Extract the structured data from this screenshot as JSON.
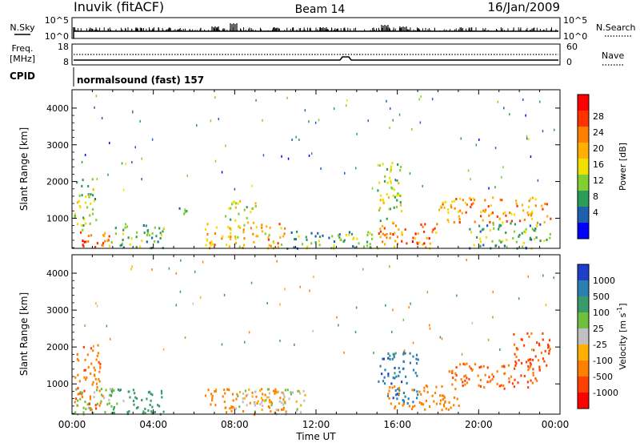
{
  "header": {
    "station": "Inuvik (fitACF)",
    "beam": "Beam 14",
    "date": "16/Jan/2009"
  },
  "top_panel": {
    "left_label": "N.Sky",
    "left_ticks": [
      "10^5",
      "10^0"
    ],
    "right_ticks": [
      "10^5",
      "10^0"
    ],
    "right_label": "N.Search"
  },
  "freq_panel": {
    "left_label_1": "Freq.",
    "left_label_2": "[MHz]",
    "left_ticks": [
      "18",
      "8"
    ],
    "right_ticks": [
      "60",
      "0"
    ],
    "right_label": "Nave",
    "cpid_label": "CPID",
    "cpid_text": "normalsound (fast) 157"
  },
  "axes": {
    "ylabel": "Slant Range [km]",
    "xlabel": "Time UT",
    "x_ticks": [
      "00:00",
      "04:00",
      "08:00",
      "12:00",
      "16:00",
      "20:00",
      "00:00"
    ],
    "y_ticks": [
      "1000",
      "2000",
      "3000",
      "4000"
    ]
  },
  "power_colorbar": {
    "label": "Power [dB]",
    "ticks": [
      "28",
      "24",
      "20",
      "16",
      "12",
      "8",
      "4"
    ],
    "colors": [
      "#ff0000",
      "#ff3300",
      "#ff8000",
      "#ffb000",
      "#f0e000",
      "#7fd030",
      "#2a9d5a",
      "#1e60b0",
      "#0000ff"
    ]
  },
  "velocity_colorbar": {
    "label_main": "Velocity  [m s",
    "label_sup": "-1",
    "label_end": "]",
    "ticks": [
      "1000",
      "500",
      "100",
      "25",
      "-25",
      "-100",
      "-500",
      "-1000"
    ],
    "colors": [
      "#1e40c8",
      "#2a80b0",
      "#3a9a6a",
      "#70c040",
      "#c0c0c0",
      "#ffb000",
      "#ff8000",
      "#ff4000",
      "#ff0000"
    ]
  },
  "chart_data": {
    "type": "heatmap",
    "x_range_hours": [
      0,
      24
    ],
    "y_range_km": [
      180,
      4500
    ],
    "power_blobs": [
      {
        "t0": 0.1,
        "t1": 1.8,
        "r0": 200,
        "r1": 700,
        "level": 26
      },
      {
        "t0": 0.1,
        "t1": 1.2,
        "r0": 700,
        "r1": 2100,
        "level": 12
      },
      {
        "t0": 1.8,
        "t1": 4.5,
        "r0": 200,
        "r1": 900,
        "level": 10
      },
      {
        "t0": 5.2,
        "t1": 5.6,
        "r0": 900,
        "r1": 1400,
        "level": 6
      },
      {
        "t0": 6.5,
        "t1": 10.5,
        "r0": 200,
        "r1": 900,
        "level": 20
      },
      {
        "t0": 7.5,
        "t1": 9.0,
        "r0": 900,
        "r1": 1500,
        "level": 14
      },
      {
        "t0": 10.5,
        "t1": 15.0,
        "r0": 200,
        "r1": 700,
        "level": 10
      },
      {
        "t0": 15.0,
        "t1": 18.0,
        "r0": 200,
        "r1": 900,
        "level": 24
      },
      {
        "t0": 15.0,
        "t1": 16.2,
        "r0": 900,
        "r1": 2600,
        "level": 14
      },
      {
        "t0": 18.0,
        "t1": 23.5,
        "r0": 900,
        "r1": 1600,
        "level": 22
      },
      {
        "t0": 19.5,
        "t1": 23.5,
        "r0": 200,
        "r1": 900,
        "level": 10
      }
    ],
    "velocity_blobs": [
      {
        "t0": 0.1,
        "t1": 1.5,
        "r0": 300,
        "r1": 2100,
        "level": -400
      },
      {
        "t0": 0.1,
        "t1": 2.5,
        "r0": 200,
        "r1": 900,
        "level": 50
      },
      {
        "t0": 1.8,
        "t1": 4.5,
        "r0": 200,
        "r1": 900,
        "level": 200
      },
      {
        "t0": 6.5,
        "t1": 10.5,
        "r0": 200,
        "r1": 900,
        "level": -150
      },
      {
        "t0": 8.0,
        "t1": 11.5,
        "r0": 200,
        "r1": 900,
        "level": 0
      },
      {
        "t0": 15.0,
        "t1": 17.0,
        "r0": 500,
        "r1": 1900,
        "level": 800
      },
      {
        "t0": 15.5,
        "t1": 19.0,
        "r0": 300,
        "r1": 1000,
        "level": -300
      },
      {
        "t0": 18.5,
        "t1": 23.0,
        "r0": 900,
        "r1": 1600,
        "level": -500
      },
      {
        "t0": 21.5,
        "t1": 23.5,
        "r0": 1400,
        "r1": 2400,
        "level": -700
      }
    ]
  }
}
